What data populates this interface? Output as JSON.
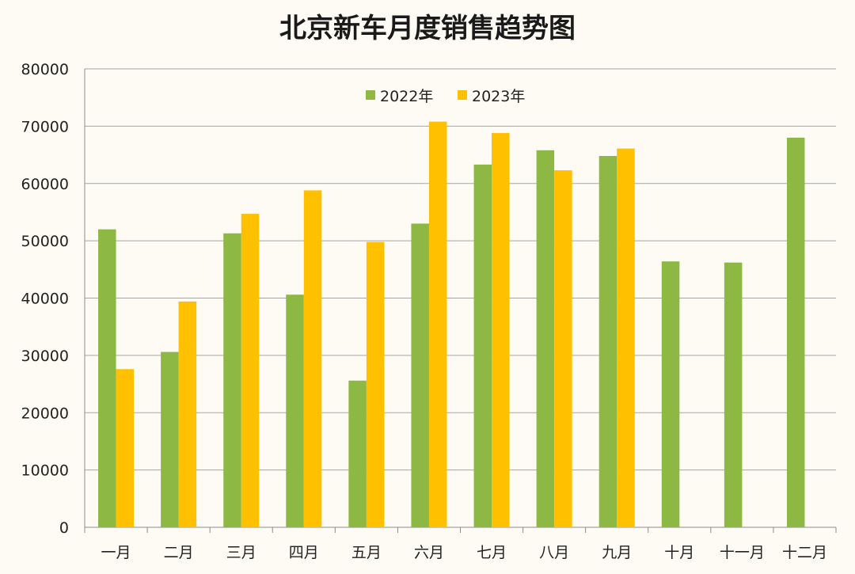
{
  "chart_data": {
    "type": "bar",
    "title": "北京新车月度销售趋势图",
    "xlabel": "",
    "ylabel": "",
    "ylim": [
      0,
      80000
    ],
    "yticks": [
      "0",
      "10000",
      "20000",
      "30000",
      "40000",
      "50000",
      "60000",
      "70000",
      "80000"
    ],
    "categories": [
      "一月",
      "二月",
      "三月",
      "四月",
      "五月",
      "六月",
      "七月",
      "八月",
      "九月",
      "十月",
      "十一月",
      "十二月"
    ],
    "series": [
      {
        "name": "2022年",
        "color": "#8db843",
        "values": [
          52000,
          30600,
          51300,
          40600,
          25600,
          53000,
          63300,
          65800,
          64800,
          46400,
          46200,
          68000
        ]
      },
      {
        "name": "2023年",
        "color": "#ffc000",
        "values": [
          27600,
          39400,
          54700,
          58800,
          49800,
          70800,
          68800,
          62300,
          66100,
          null,
          null,
          null
        ]
      }
    ],
    "grid": true,
    "legend_position": "top-center"
  }
}
